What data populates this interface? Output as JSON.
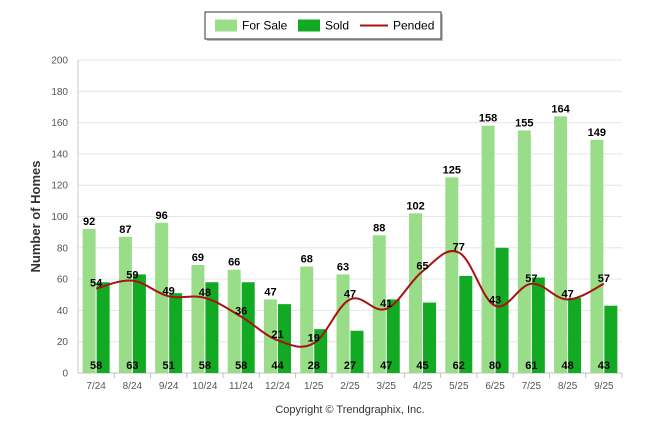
{
  "chart_data": {
    "type": "bar",
    "ylabel": "Number of Homes",
    "ylim": [
      0,
      200
    ],
    "yticks": [
      0,
      20,
      40,
      60,
      80,
      100,
      120,
      140,
      160,
      180,
      200
    ],
    "categories": [
      "7/24",
      "8/24",
      "9/24",
      "10/24",
      "11/24",
      "12/24",
      "1/25",
      "2/25",
      "3/25",
      "4/25",
      "5/25",
      "6/25",
      "7/25",
      "8/25",
      "9/25"
    ],
    "series": [
      {
        "name": "For Sale",
        "kind": "bar",
        "color": "#99dd88",
        "values": [
          92,
          87,
          96,
          69,
          66,
          47,
          68,
          63,
          88,
          102,
          125,
          158,
          155,
          164,
          149
        ]
      },
      {
        "name": "Sold",
        "kind": "bar",
        "color": "#11aa22",
        "values": [
          58,
          63,
          51,
          58,
          58,
          44,
          28,
          27,
          47,
          45,
          62,
          80,
          61,
          48,
          43
        ]
      },
      {
        "name": "Pended",
        "kind": "line",
        "color": "#aa1111",
        "values": [
          54,
          59,
          49,
          48,
          36,
          21,
          19,
          47,
          41,
          65,
          77,
          43,
          57,
          47,
          57
        ]
      }
    ],
    "legend": "top-center",
    "grid": true,
    "credit": "Copyright © Trendgraphix, Inc."
  }
}
